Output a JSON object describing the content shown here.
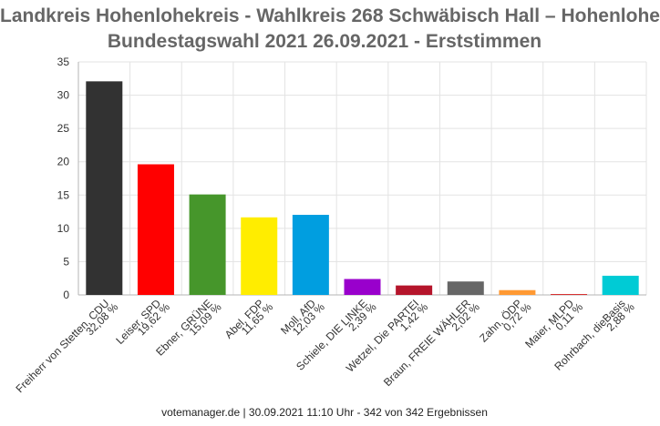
{
  "chart_data": {
    "type": "bar",
    "title": "Landkreis Hohenlohekreis - Wahlkreis 268 Schwäbisch Hall – Hohenlohe",
    "subtitle": "Bundestagswahl 2021 26.09.2021  - Erststimmen",
    "categories": [
      "Freiherr von Stetten, CDU",
      "Leiser, SPD",
      "Ebner, GRÜNE",
      "Abel, FDP",
      "Moll, AfD",
      "Schiele, DIE LINKE",
      "Wetzel, Die PARTEI",
      "Braun, FREIE WÄHLER",
      "Zahn, ÖDP",
      "Maier, MLPD",
      "Rohrbach, dieBasis"
    ],
    "value_labels": [
      "32,08 %",
      "19,62 %",
      "15,09 %",
      "11,65 %",
      "12,03 %",
      "2,39 %",
      "1,42 %",
      "2,02 %",
      "0,72 %",
      "0,11 %",
      "2,88 %"
    ],
    "values": [
      32.08,
      19.62,
      15.09,
      11.65,
      12.03,
      2.39,
      1.42,
      2.02,
      0.72,
      0.11,
      2.88
    ],
    "colors": [
      "#323232",
      "#ff0000",
      "#46962b",
      "#ffed00",
      "#009ee0",
      "#9900cc",
      "#b5152b",
      "#666666",
      "#ff9933",
      "#cc0000",
      "#00cbd5"
    ],
    "ylim": [
      0,
      35
    ],
    "yticks": [
      "0",
      "5",
      "10",
      "15",
      "20",
      "25",
      "30",
      "35"
    ],
    "grid": true,
    "xlabel": "",
    "ylabel": ""
  },
  "footer": "votemanager.de | 30.09.2021 11:10 Uhr - 342 von 342 Ergebnissen"
}
